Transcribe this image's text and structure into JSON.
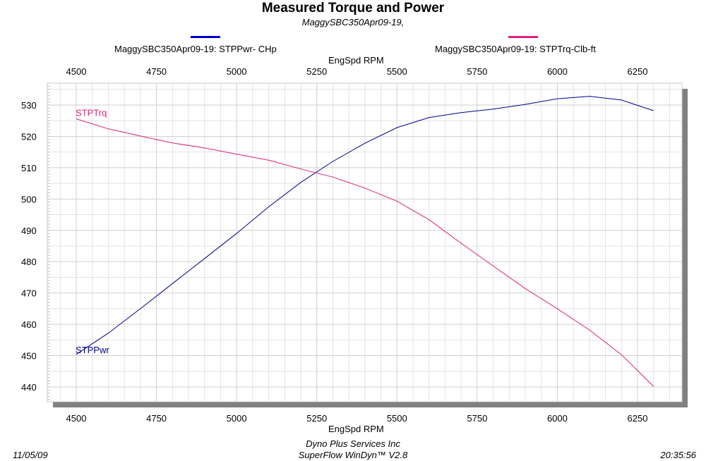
{
  "chart_data": {
    "type": "line",
    "title": "Measured Torque and Power",
    "subtitle": "MaggySBC350Apr09-19,",
    "xlabel": "EngSpd  RPM",
    "x_ticks": [
      "4500",
      "4750",
      "5000",
      "5250",
      "5500",
      "5750",
      "6000",
      "6250"
    ],
    "y_ticks": [
      "440",
      "450",
      "460",
      "470",
      "480",
      "490",
      "500",
      "510",
      "520",
      "530"
    ],
    "xlim": [
      4500,
      6300
    ],
    "ylim": [
      436,
      538
    ],
    "grid": true,
    "legend": [
      {
        "label": "MaggySBC350Apr09-19: STPPwr- CHp",
        "color": "#0000cc"
      },
      {
        "label": "MaggySBC350Apr09-19: STPTrq-Clb-ft",
        "color": "#e0207a"
      }
    ],
    "series": [
      {
        "label": "STPPwr",
        "color": "#00008b",
        "x": [
          4500,
          4600,
          4700,
          4800,
          4900,
          5000,
          5100,
          5200,
          5300,
          5400,
          5500,
          5600,
          5700,
          5800,
          5900,
          6000,
          6100,
          6200,
          6300
        ],
        "y": [
          450.4,
          457.2,
          465.0,
          473.0,
          481.0,
          489.0,
          497.5,
          505.3,
          512.0,
          517.8,
          522.8,
          526.0,
          527.6,
          528.7,
          530.2,
          532.0,
          532.8,
          531.6,
          528.2
        ]
      },
      {
        "label": "STPTrq",
        "color": "#e0207a",
        "x": [
          4500,
          4600,
          4700,
          4800,
          4900,
          5000,
          5100,
          5200,
          5300,
          5400,
          5500,
          5600,
          5700,
          5800,
          5900,
          6000,
          6100,
          6200,
          6300
        ],
        "y": [
          525.6,
          522.4,
          520.1,
          517.9,
          516.3,
          514.3,
          512.4,
          509.6,
          507.0,
          503.5,
          499.3,
          493.4,
          485.9,
          478.6,
          471.4,
          465.0,
          458.2,
          450.3,
          440.2
        ]
      }
    ]
  },
  "footer": {
    "company": "Dyno Plus Services Inc",
    "software": "SuperFlow WinDyn™ V2.8",
    "date": "11/05/09",
    "time": "20:35:56"
  }
}
